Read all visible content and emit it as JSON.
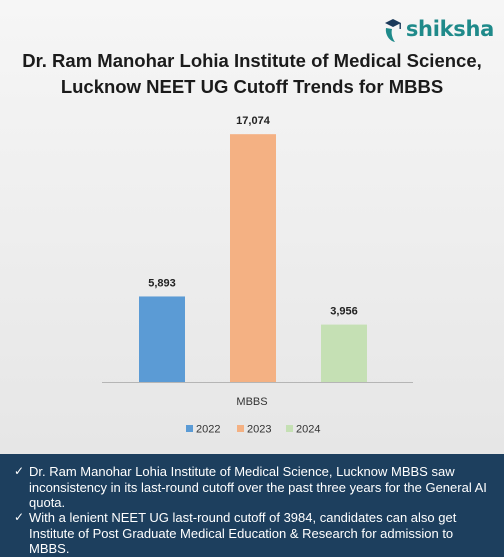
{
  "brand": {
    "logo_text": "shiksha",
    "logo_icon": "graduation-cap-icon",
    "color": "#1f8a8a"
  },
  "title": {
    "line1": "Dr. Ram Manohar Lohia Institute of Medical Science,",
    "line2": "Lucknow NEET UG Cutoff Trends for MBBS"
  },
  "chart_data": {
    "type": "bar",
    "categories": [
      "MBBS"
    ],
    "series": [
      {
        "name": "2022",
        "values": [
          5893
        ],
        "label": "5,893",
        "color": "#5b9bd5"
      },
      {
        "name": "2023",
        "values": [
          17074
        ],
        "label": "17,074",
        "color": "#f4b183"
      },
      {
        "name": "2024",
        "values": [
          3956
        ],
        "label": "3,956",
        "color": "#c5e0b4"
      }
    ],
    "title": "Dr. Ram Manohar Lohia Institute of Medical Science, Lucknow NEET UG Cutoff Trends for MBBS",
    "xlabel": "",
    "ylabel": "",
    "ylim": [
      0,
      17500
    ],
    "grid": false,
    "legend": "bottom"
  },
  "notes": [
    {
      "check": "✓",
      "text": "Dr. Ram Manohar Lohia Institute of Medical Science, Lucknow MBBS saw inconsistency in its last-round cutoff over the past three years for the General AI quota."
    },
    {
      "check": "✓",
      "text": "With a lenient NEET UG last-round cutoff of 3984, candidates can also get Institute of Post Graduate Medical Education & Research for admission to MBBS."
    }
  ],
  "colors": {
    "footer_bg": "#1d3f5e",
    "background": "#e9e9e9"
  }
}
